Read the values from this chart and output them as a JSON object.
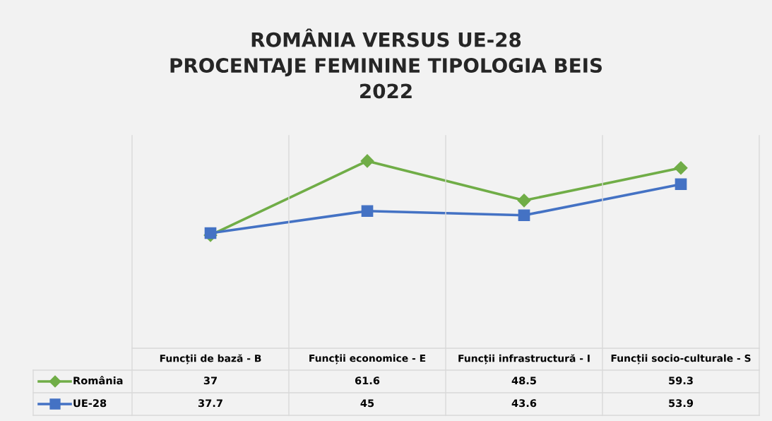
{
  "chart_data": {
    "type": "line",
    "title": "ROMÂNIA VERSUS UE-28\nPROCENTAJE FEMININE TIPOLOGIA BEIS\n2022",
    "categories": [
      "Funcții de bază - B",
      "Funcții economice - E",
      "Funcții infrastructură - I",
      "Funcții socio-culturale - S"
    ],
    "series": [
      {
        "name": "România",
        "color": "#70ad47",
        "marker": "diamond",
        "values": [
          37,
          61.6,
          48.5,
          59.3
        ]
      },
      {
        "name": "UE-28",
        "color": "#4472c4",
        "marker": "square",
        "values": [
          37.7,
          45,
          43.6,
          53.9
        ]
      }
    ],
    "ylim": [
      0,
      70
    ],
    "tick_labels": false,
    "data_labels": true,
    "legend": "bottom"
  }
}
